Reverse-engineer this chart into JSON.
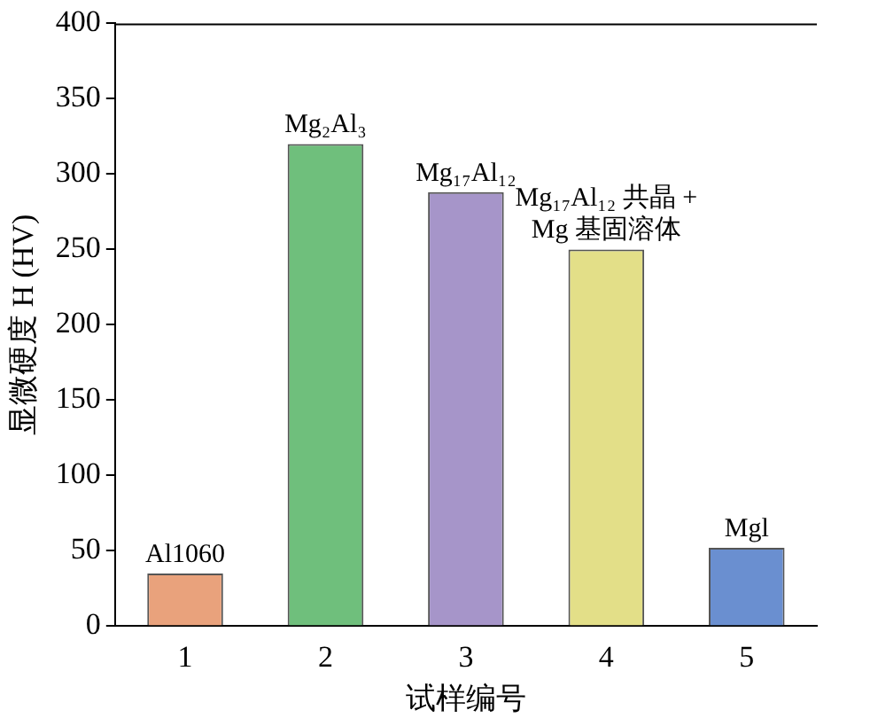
{
  "chart_data": {
    "type": "bar",
    "xlabel": "试样编号",
    "ylabel": "显微硬度 H (HV)",
    "categories": [
      "1",
      "2",
      "3",
      "4",
      "5"
    ],
    "values": [
      35,
      320,
      288,
      250,
      52
    ],
    "colors": [
      "#e9a27c",
      "#6fbf7c",
      "#a695c9",
      "#e3df88",
      "#6a8fd0"
    ],
    "ylim": [
      0,
      400
    ],
    "yticks": [
      0,
      50,
      100,
      150,
      200,
      250,
      300,
      350,
      400
    ],
    "grid": false,
    "legend": false,
    "annotations": [
      {
        "text": "Al1060",
        "x": "1",
        "y": 35
      },
      {
        "text": "Mg₂Al₃",
        "x": "2",
        "y": 320
      },
      {
        "text": "Mg₁₇Al₁₂",
        "x": "3",
        "y": 288
      },
      {
        "text": "Mg₁₇Al₁₂ 共晶 +\nMg 基固溶体",
        "x": "4",
        "y": 250
      },
      {
        "text": "Mgl",
        "x": "5",
        "y": 52
      }
    ]
  }
}
